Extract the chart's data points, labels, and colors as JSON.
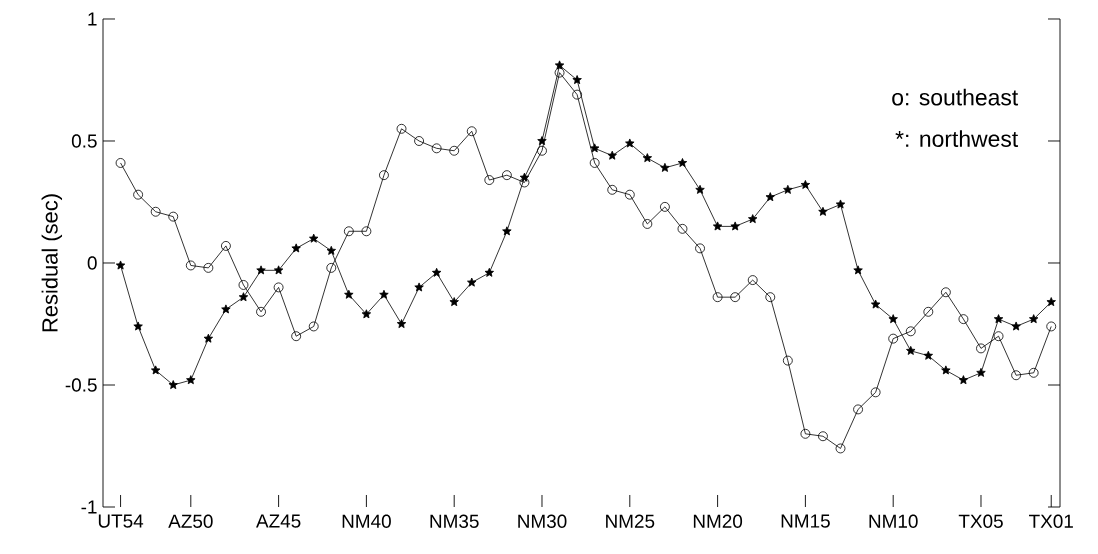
{
  "chart_data": {
    "type": "line",
    "ylabel": "Residual (sec)",
    "categories": [
      "UT54",
      null,
      null,
      null,
      "AZ50",
      null,
      null,
      null,
      null,
      "AZ45",
      null,
      null,
      null,
      null,
      "NM40",
      null,
      null,
      null,
      null,
      "NM35",
      null,
      null,
      null,
      null,
      "NM30",
      null,
      null,
      null,
      null,
      "NM25",
      null,
      null,
      null,
      null,
      "NM20",
      null,
      null,
      null,
      null,
      "NM15",
      null,
      null,
      null,
      null,
      "NM10",
      null,
      null,
      null,
      null,
      "TX05",
      null,
      null,
      null,
      "TX01"
    ],
    "series": [
      {
        "color": "#000000",
        "marker": "circle",
        "values": [
          0.41,
          0.28,
          0.21,
          0.19,
          -0.01,
          -0.02,
          0.07,
          -0.09,
          -0.2,
          -0.1,
          -0.3,
          -0.26,
          -0.02,
          0.13,
          0.13,
          0.36,
          0.55,
          0.5,
          0.47,
          0.46,
          0.54,
          0.34,
          0.36,
          0.33,
          0.46,
          0.78,
          0.69,
          0.41,
          0.3,
          0.28,
          0.16,
          0.23,
          0.14,
          0.06,
          -0.14,
          -0.14,
          -0.07,
          -0.14,
          -0.4,
          -0.7,
          -0.71,
          -0.76,
          -0.6,
          -0.53,
          -0.31,
          -0.28,
          -0.2,
          -0.12,
          -0.23,
          -0.35,
          -0.3,
          -0.46,
          -0.45,
          -0.26
        ]
      },
      {
        "color": "#000000",
        "marker": "star",
        "values": [
          -0.01,
          -0.26,
          -0.44,
          -0.5,
          -0.48,
          -0.31,
          -0.19,
          -0.14,
          -0.03,
          -0.03,
          0.06,
          0.1,
          0.05,
          -0.13,
          -0.21,
          -0.13,
          -0.25,
          -0.1,
          -0.04,
          -0.16,
          -0.08,
          -0.04,
          0.13,
          0.35,
          0.5,
          0.81,
          0.75,
          0.47,
          0.44,
          0.49,
          0.43,
          0.39,
          0.41,
          0.3,
          0.15,
          0.15,
          0.18,
          0.27,
          0.3,
          0.32,
          0.21,
          0.24,
          -0.03,
          -0.17,
          -0.23,
          -0.36,
          -0.38,
          -0.44,
          -0.48,
          -0.45,
          -0.23,
          -0.26,
          -0.23,
          -0.16
        ]
      }
    ],
    "ylim": [
      -1,
      1
    ],
    "yticks": [
      -1,
      -0.5,
      0,
      0.5,
      1
    ],
    "annotations": [
      "o: southeast",
      "*: northwest"
    ],
    "grid": false,
    "legend": false,
    "line_style": "solid"
  }
}
